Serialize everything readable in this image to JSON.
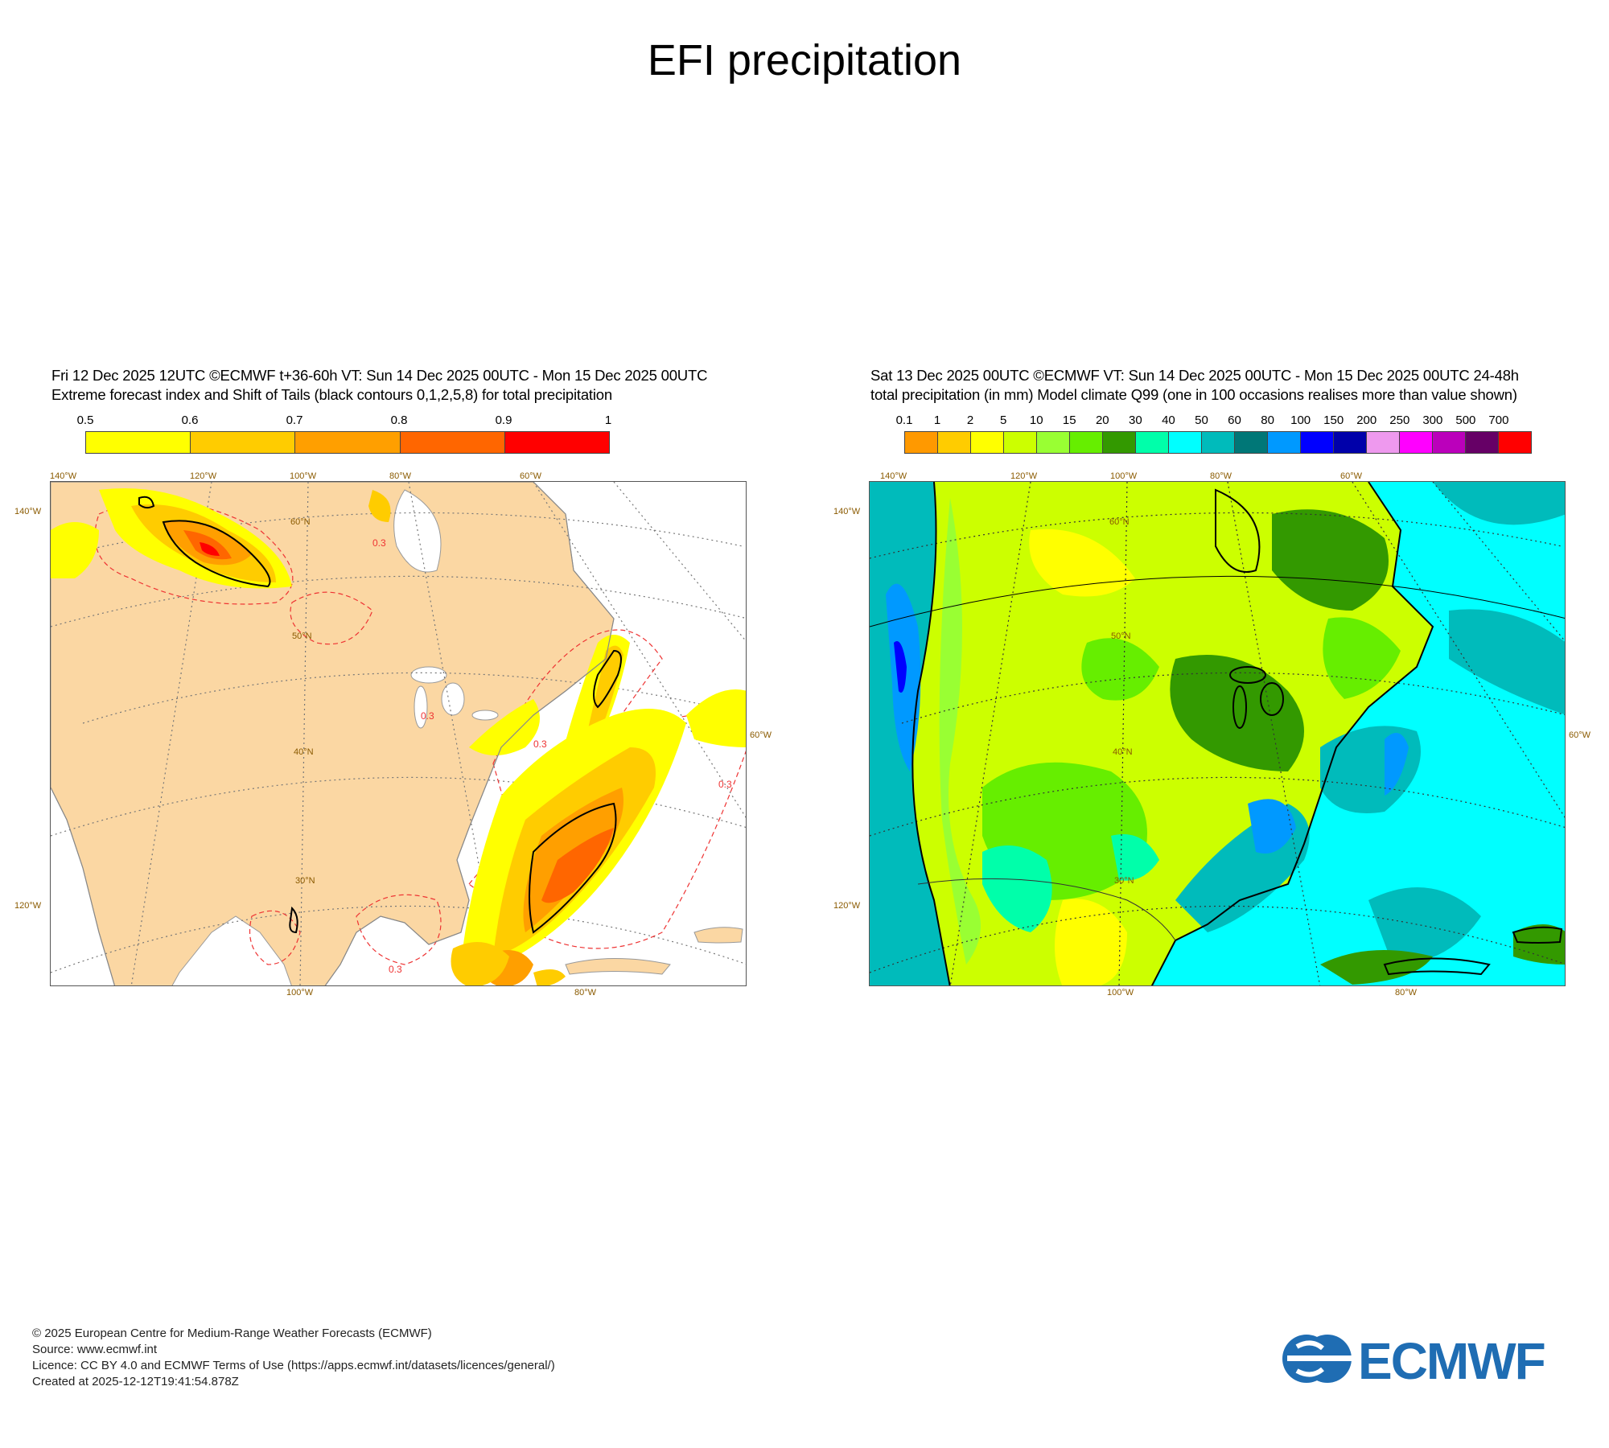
{
  "page": {
    "title": "EFI precipitation"
  },
  "left_panel": {
    "header_line1": "Fri 12 Dec 2025 12UTC ©ECMWF t+36-60h  VT: Sun 14 Dec 2025 00UTC - Mon 15 Dec 2025 00UTC",
    "header_line2": "Extreme forecast index and Shift of Tails (black contours 0,1,2,5,8) for total precipitation",
    "legend_labels": [
      "0.5",
      "0.6",
      "0.7",
      "0.8",
      "0.9",
      "1"
    ],
    "legend_colors": [
      "#ffff00",
      "#ffcc00",
      "#ff9f00",
      "#ff6600",
      "#ff0000"
    ],
    "land_color": "#fbd7a3",
    "contour_label": "0.3",
    "deg_labels": {
      "lon140": "140°W",
      "lon120": "120°W",
      "lon100": "100°W",
      "lon80": "80°W",
      "lon60": "60°W",
      "lat140w": "140°W",
      "lat120w": "120°W",
      "lat60w": "60°W",
      "bot100": "100°W",
      "bot80": "80°W",
      "n60": "60°N",
      "n50": "50°N",
      "n40": "40°N",
      "n30": "30°N"
    }
  },
  "right_panel": {
    "header_line1": "Sat 13 Dec 2025 00UTC ©ECMWF VT: Sun 14 Dec 2025 00UTC - Mon 15 Dec 2025 00UTC   24-48h",
    "header_line2": "total precipitation (in mm)  Model climate Q99 (one in 100 occasions realises more than value shown)",
    "legend_labels": [
      "0.1",
      "1",
      "2",
      "5",
      "10",
      "15",
      "20",
      "30",
      "40",
      "50",
      "60",
      "80",
      "100",
      "150",
      "200",
      "250",
      "300",
      "500",
      "700"
    ],
    "legend_colors": [
      "#ff9900",
      "#ffcc00",
      "#ffff00",
      "#ccff00",
      "#99ff33",
      "#66ee00",
      "#339900",
      "#00ffaa",
      "#00ffff",
      "#00bbbb",
      "#007777",
      "#0099ff",
      "#0000ff",
      "#0000aa",
      "#ee99ee",
      "#ff00ff",
      "#bb00bb",
      "#660066",
      "#ff0000"
    ],
    "deg_labels": {
      "lon140": "140°W",
      "lon120": "120°W",
      "lon100": "100°W",
      "lon80": "80°W",
      "lon60": "60°W",
      "lat140w": "140°W",
      "lat120w": "120°W",
      "lat60w": "60°W",
      "bot100": "100°W",
      "bot80": "80°W",
      "n60": "60°N",
      "n50": "50°N",
      "n40": "40°N",
      "n30": "30°N"
    }
  },
  "footer": {
    "line1": "© 2025 European Centre for Medium-Range Weather Forecasts (ECMWF)",
    "line2": "Source: www.ecmwf.int",
    "line3": "Licence: CC BY 4.0 and ECMWF Terms of Use (https://apps.ecmwf.int/datasets/licences/general/)",
    "line4": "Created at 2025-12-12T19:41:54.878Z"
  },
  "logo": {
    "text": "ECMWF",
    "color": "#1f6db3"
  }
}
